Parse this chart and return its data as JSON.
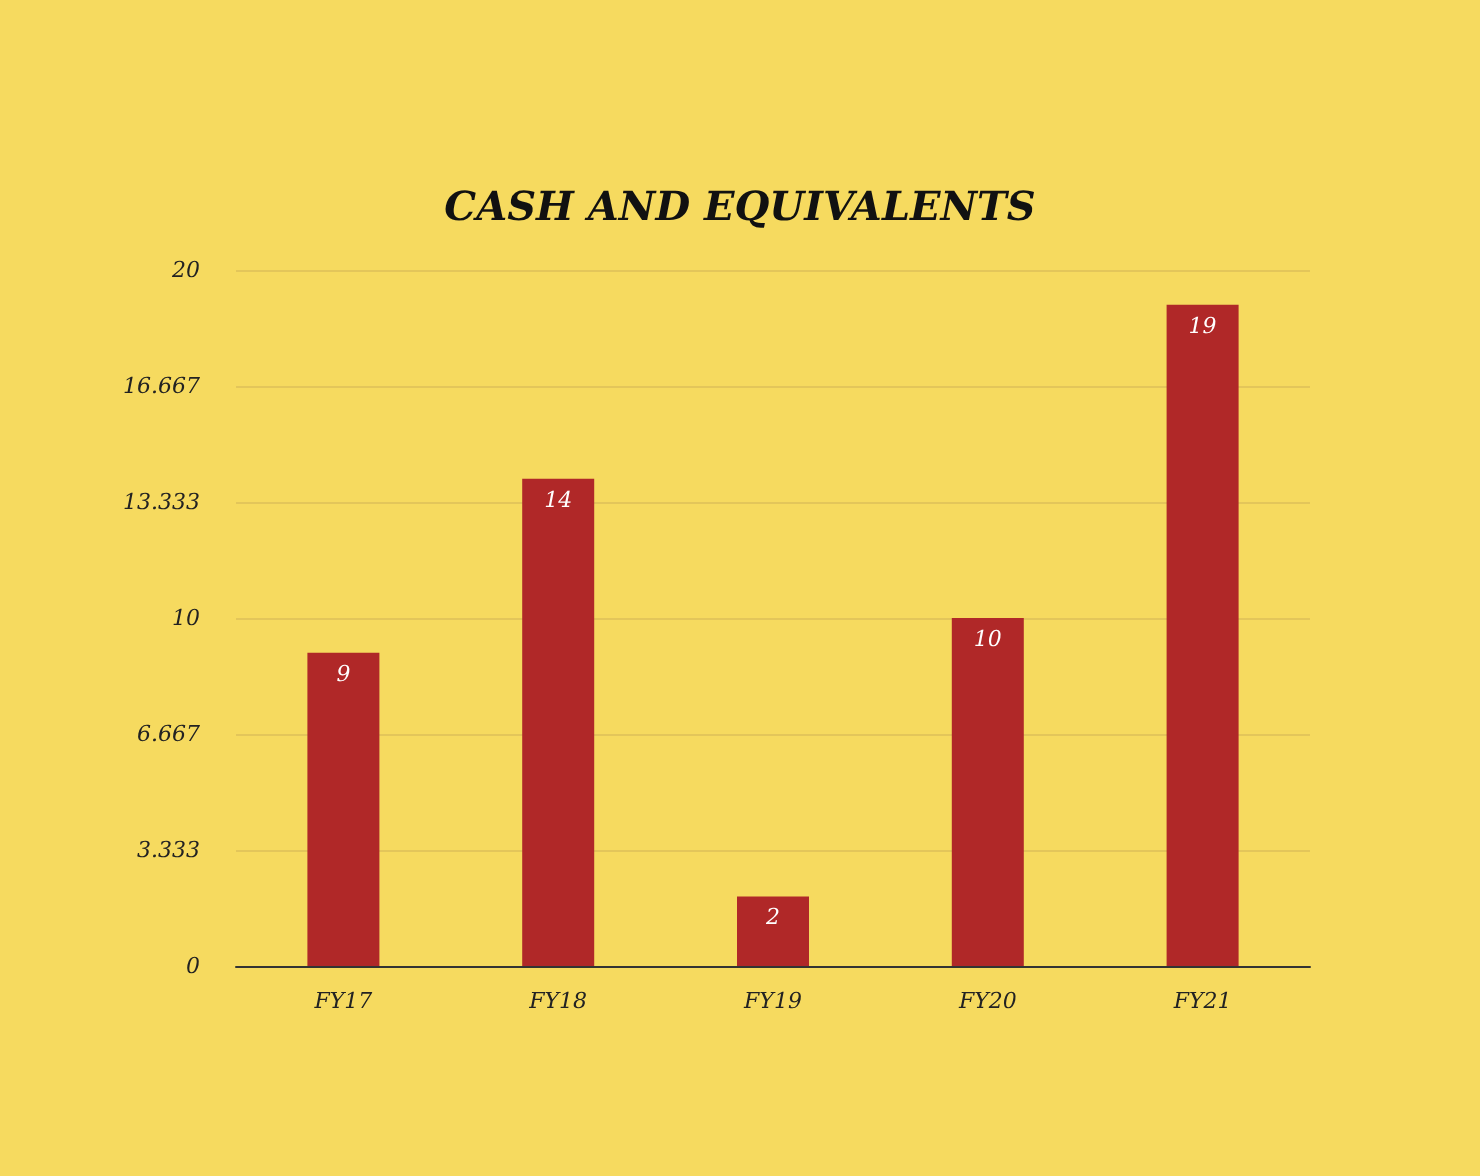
{
  "chart_data": {
    "type": "bar",
    "title": "CASH AND EQUIVALENTS",
    "categories": [
      "FY17",
      "FY18",
      "FY19",
      "FY20",
      "FY21"
    ],
    "values": [
      9,
      14,
      2,
      10,
      19
    ],
    "color": "#b02828",
    "ylim": [
      0,
      20
    ],
    "yticks": [
      0,
      3.333,
      6.667,
      10,
      13.333,
      16.667,
      20
    ],
    "grid": "y",
    "data_labels": true
  }
}
